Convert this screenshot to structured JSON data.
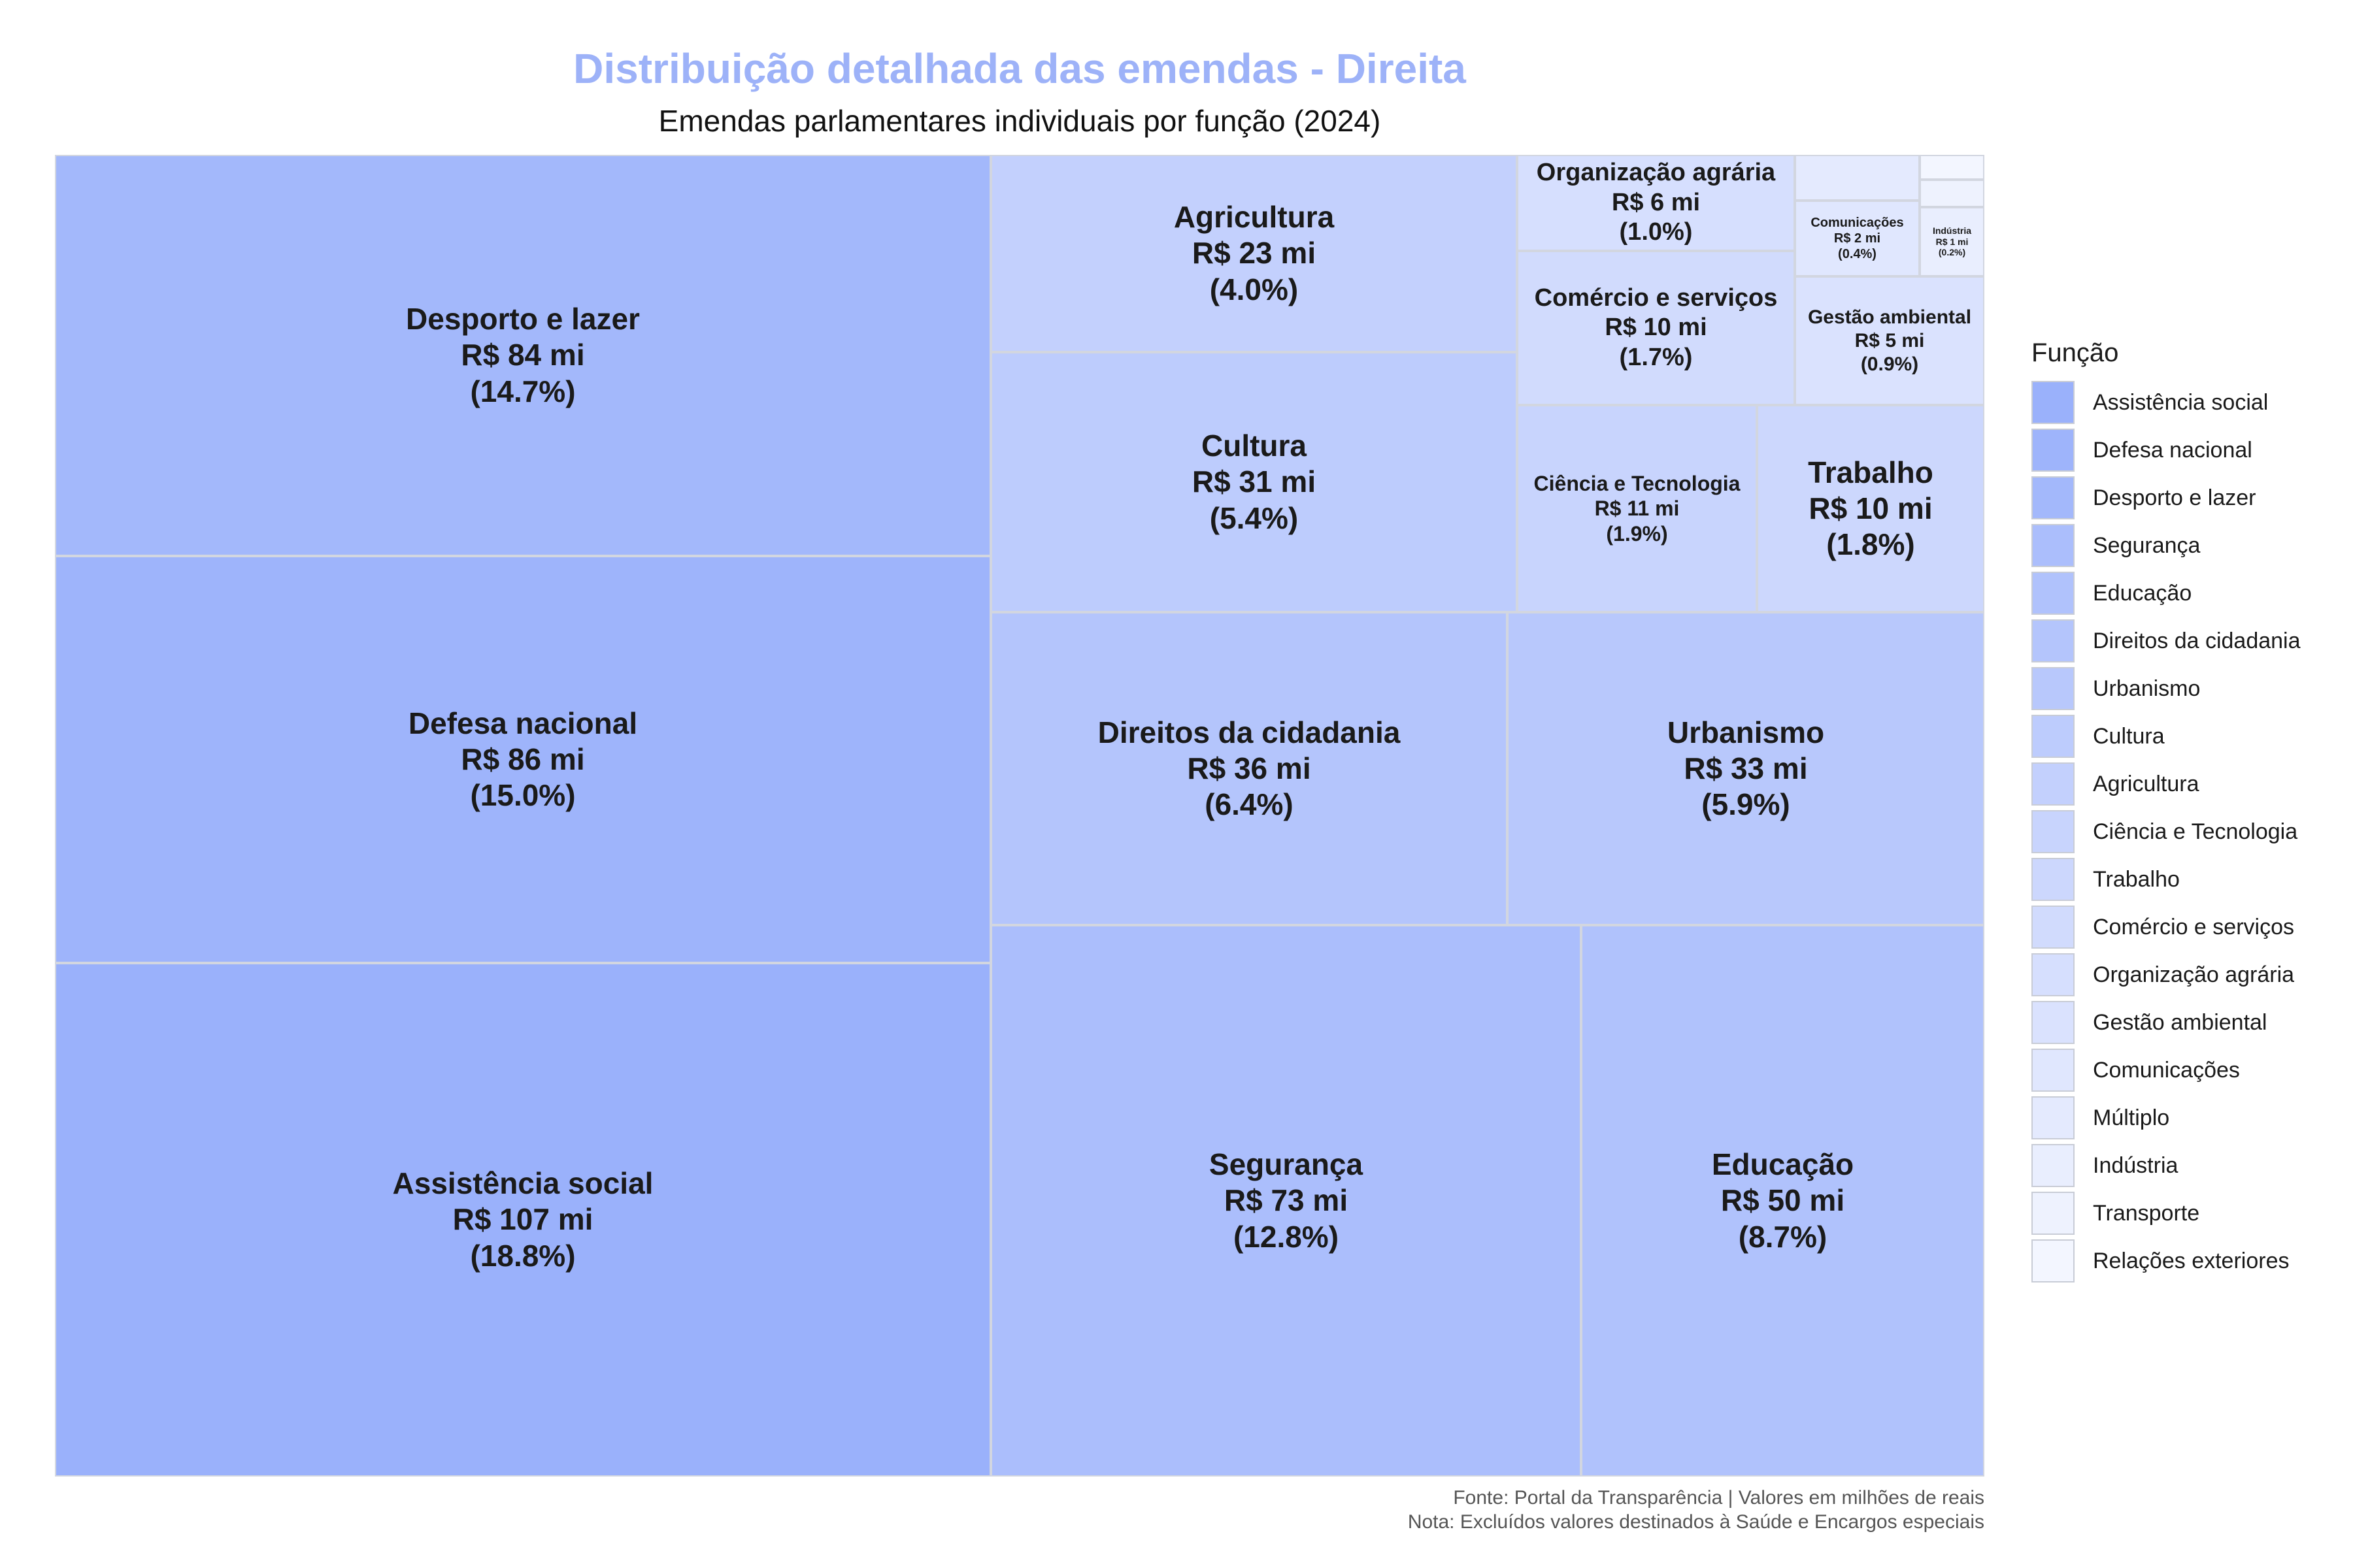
{
  "title": "Distribuição detalhada das emendas - Direita",
  "subtitle": "Emendas parlamentares individuais por função (2024)",
  "caption_source": "Fonte: Portal da Transparência | Valores em milhões de reais",
  "caption_note": "Nota: Excluídos valores destinados à Saúde e Encargos especiais",
  "legend": {
    "title": "Função",
    "items": [
      {
        "label": "Assistência social",
        "color": "#9ab1fb"
      },
      {
        "label": "Defesa nacional",
        "color": "#9eb4fb"
      },
      {
        "label": "Desporto e lazer",
        "color": "#a3b8fb"
      },
      {
        "label": "Segurança",
        "color": "#abbefc"
      },
      {
        "label": "Educação",
        "color": "#b0c2fc"
      },
      {
        "label": "Direitos da cidadania",
        "color": "#b4c5fc"
      },
      {
        "label": "Urbanismo",
        "color": "#b8c8fc"
      },
      {
        "label": "Cultura",
        "color": "#bdccfd"
      },
      {
        "label": "Agricultura",
        "color": "#c3d0fd"
      },
      {
        "label": "Ciência e Tecnologia",
        "color": "#c8d4fd"
      },
      {
        "label": "Trabalho",
        "color": "#ccd7fd"
      },
      {
        "label": "Comércio e serviços",
        "color": "#d1dbfd"
      },
      {
        "label": "Organização agrária",
        "color": "#d6dffe"
      },
      {
        "label": "Gestão ambiental",
        "color": "#dae2fe"
      },
      {
        "label": "Comunicações",
        "color": "#e0e7fe"
      },
      {
        "label": "Múltiplo",
        "color": "#e4eafe"
      },
      {
        "label": "Indústria",
        "color": "#e9eefe"
      },
      {
        "label": "Transporte",
        "color": "#eef2fe"
      },
      {
        "label": "Relações exteriores",
        "color": "#f3f6ff"
      }
    ]
  },
  "chart_data": {
    "type": "treemap",
    "title": "Distribuição detalhada das emendas - Direita",
    "subtitle": "Emendas parlamentares individuais por função (2024)",
    "unit": "R$ milhões",
    "items": [
      {
        "name": "Assistência social",
        "value": 107,
        "value_label": "R$ 107 mi",
        "percent": 18.8,
        "percent_label": "(18.8%)",
        "color": "#9ab1fb",
        "show_label": true
      },
      {
        "name": "Defesa nacional",
        "value": 86,
        "value_label": "R$ 86 mi",
        "percent": 15.0,
        "percent_label": "(15.0%)",
        "color": "#9eb4fb",
        "show_label": true
      },
      {
        "name": "Desporto e lazer",
        "value": 84,
        "value_label": "R$ 84 mi",
        "percent": 14.7,
        "percent_label": "(14.7%)",
        "color": "#a3b8fb",
        "show_label": true
      },
      {
        "name": "Segurança",
        "value": 73,
        "value_label": "R$ 73 mi",
        "percent": 12.8,
        "percent_label": "(12.8%)",
        "color": "#abbefc",
        "show_label": true
      },
      {
        "name": "Educação",
        "value": 50,
        "value_label": "R$ 50 mi",
        "percent": 8.7,
        "percent_label": "(8.7%)",
        "color": "#b0c2fc",
        "show_label": true
      },
      {
        "name": "Direitos da cidadania",
        "value": 36,
        "value_label": "R$ 36 mi",
        "percent": 6.4,
        "percent_label": "(6.4%)",
        "color": "#b4c5fc",
        "show_label": true
      },
      {
        "name": "Urbanismo",
        "value": 33,
        "value_label": "R$ 33 mi",
        "percent": 5.9,
        "percent_label": "(5.9%)",
        "color": "#b8c8fc",
        "show_label": true
      },
      {
        "name": "Cultura",
        "value": 31,
        "value_label": "R$ 31 mi",
        "percent": 5.4,
        "percent_label": "(5.4%)",
        "color": "#bdccfd",
        "show_label": true
      },
      {
        "name": "Agricultura",
        "value": 23,
        "value_label": "R$ 23 mi",
        "percent": 4.0,
        "percent_label": "(4.0%)",
        "color": "#c3d0fd",
        "show_label": true
      },
      {
        "name": "Ciência e Tecnologia",
        "value": 11,
        "value_label": "R$ 11 mi",
        "percent": 1.9,
        "percent_label": "(1.9%)",
        "color": "#c8d4fd",
        "show_label": true
      },
      {
        "name": "Trabalho",
        "value": 10,
        "value_label": "R$ 10 mi",
        "percent": 1.8,
        "percent_label": "(1.8%)",
        "color": "#ccd7fd",
        "show_label": true
      },
      {
        "name": "Comércio e serviços",
        "value": 10,
        "value_label": "R$ 10 mi",
        "percent": 1.7,
        "percent_label": "(1.7%)",
        "color": "#d1dbfd",
        "show_label": true
      },
      {
        "name": "Organização agrária",
        "value": 6,
        "value_label": "R$ 6 mi",
        "percent": 1.0,
        "percent_label": "(1.0%)",
        "color": "#d6dffe",
        "show_label": true
      },
      {
        "name": "Gestão ambiental",
        "value": 5,
        "value_label": "R$ 5 mi",
        "percent": 0.9,
        "percent_label": "(0.9%)",
        "color": "#dae2fe",
        "show_label": true
      },
      {
        "name": "Comunicações",
        "value": 2,
        "value_label": "R$ 2 mi",
        "percent": 0.4,
        "percent_label": "(0.4%)",
        "color": "#e0e7fe",
        "show_label": true
      },
      {
        "name": "Múltiplo",
        "value": 2,
        "value_label": "",
        "percent_label": "",
        "color": "#e4eafe",
        "show_label": false
      },
      {
        "name": "Indústria",
        "value": 1,
        "value_label": "R$ 1 mi",
        "percent": 0.2,
        "percent_label": "(0.2%)",
        "color": "#e9eefe",
        "show_label": true
      },
      {
        "name": "Transporte",
        "value": 1,
        "value_label": "",
        "percent_label": "",
        "color": "#eef2fe",
        "show_label": false
      },
      {
        "name": "Relações exteriores",
        "value": 1,
        "value_label": "",
        "percent_label": "",
        "color": "#f3f6ff",
        "show_label": false
      }
    ]
  }
}
